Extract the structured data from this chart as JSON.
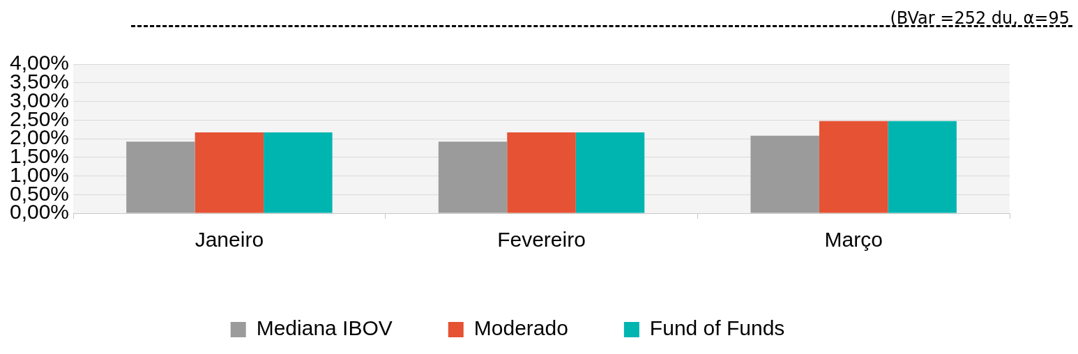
{
  "chart_data": {
    "type": "bar",
    "annotations": [
      "(BVar =252 du, α=95"
    ],
    "categories": [
      "Janeiro",
      "Fevereiro",
      "Março"
    ],
    "series": [
      {
        "name": "Mediana IBOV",
        "color": "#9b9b9b",
        "values": [
          1.92,
          1.92,
          2.08
        ]
      },
      {
        "name": "Moderado",
        "color": "#e55234",
        "values": [
          2.17,
          2.17,
          2.47
        ]
      },
      {
        "name": "Fund of Funds",
        "color": "#00b5b0",
        "values": [
          2.17,
          2.17,
          2.47
        ]
      }
    ],
    "ylim": [
      0,
      4
    ],
    "yticks": [
      {
        "value": 0,
        "label": "0,00%"
      },
      {
        "value": 0.5,
        "label": "0,50%"
      },
      {
        "value": 1,
        "label": "1,00%"
      },
      {
        "value": 1.5,
        "label": "1,50%"
      },
      {
        "value": 2,
        "label": "2,00%"
      },
      {
        "value": 2.5,
        "label": "2,50%"
      },
      {
        "value": 3,
        "label": "3,00%"
      },
      {
        "value": 3.5,
        "label": "3,50%"
      },
      {
        "value": 4,
        "label": "4,00%"
      }
    ],
    "grid": "y",
    "legend": "bottom"
  }
}
